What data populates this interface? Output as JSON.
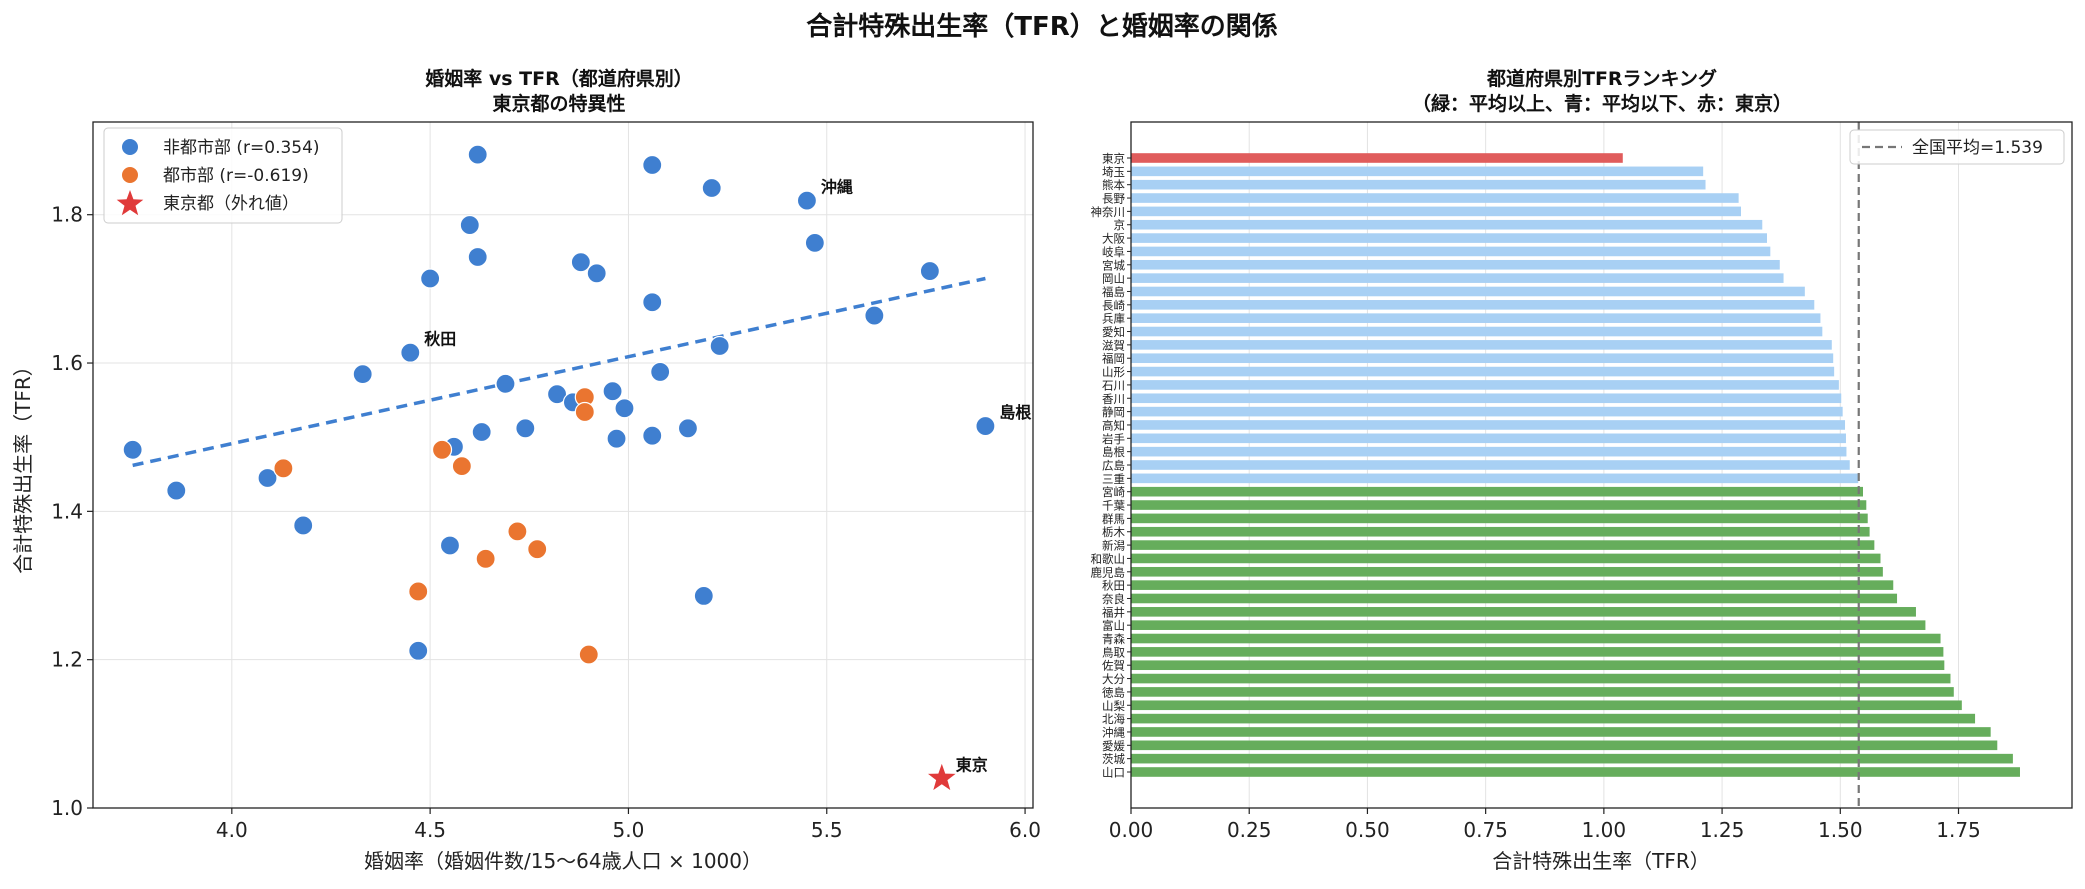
{
  "suptitle": "合計特殊出生率（TFR）と婚姻率の関係",
  "chart_data": [
    {
      "type": "scatter",
      "title": [
        "婚姻率 vs TFR（都道府県別）",
        "東京都の特異性"
      ],
      "xlabel": "婚姻率（婚姻件数/15〜64歳人口 × 1000）",
      "ylabel": "合計特殊出生率（TFR）",
      "xlim": [
        3.65,
        6.02
      ],
      "ylim": [
        1.0,
        1.925
      ],
      "xticks": [
        "4.0",
        "4.5",
        "5.0",
        "5.5",
        "6.0"
      ],
      "yticks": [
        "1.0",
        "1.2",
        "1.4",
        "1.6",
        "1.8"
      ],
      "grid": true,
      "legend_position": "upper-left",
      "colors": {
        "non_urban": "#3f7fd0",
        "urban": "#ea7530",
        "tokyo": "#e03a3a",
        "trend": "#3f7fd0"
      },
      "series": [
        {
          "name": "非都市部 (r=0.354)",
          "points": [
            [
              3.75,
              1.483
            ],
            [
              3.86,
              1.428
            ],
            [
              4.09,
              1.445
            ],
            [
              4.18,
              1.381
            ],
            [
              4.33,
              1.585
            ],
            [
              4.45,
              1.614
            ],
            [
              4.47,
              1.212
            ],
            [
              4.5,
              1.714
            ],
            [
              4.55,
              1.354
            ],
            [
              4.56,
              1.487
            ],
            [
              4.6,
              1.786
            ],
            [
              4.62,
              1.881
            ],
            [
              4.62,
              1.743
            ],
            [
              4.63,
              1.507
            ],
            [
              4.69,
              1.572
            ],
            [
              4.74,
              1.512
            ],
            [
              4.82,
              1.558
            ],
            [
              4.86,
              1.547
            ],
            [
              4.88,
              1.736
            ],
            [
              4.92,
              1.721
            ],
            [
              4.96,
              1.562
            ],
            [
              4.97,
              1.498
            ],
            [
              4.99,
              1.539
            ],
            [
              5.06,
              1.867
            ],
            [
              5.06,
              1.682
            ],
            [
              5.06,
              1.502
            ],
            [
              5.08,
              1.588
            ],
            [
              5.15,
              1.512
            ],
            [
              5.19,
              1.286
            ],
            [
              5.21,
              1.836
            ],
            [
              5.23,
              1.623
            ],
            [
              5.45,
              1.819
            ],
            [
              5.47,
              1.762
            ],
            [
              5.62,
              1.664
            ],
            [
              5.76,
              1.724
            ],
            [
              5.9,
              1.515
            ]
          ]
        },
        {
          "name": "都市部 (r=-0.619)",
          "points": [
            [
              4.13,
              1.458
            ],
            [
              4.47,
              1.292
            ],
            [
              4.53,
              1.483
            ],
            [
              4.58,
              1.461
            ],
            [
              4.64,
              1.336
            ],
            [
              4.72,
              1.373
            ],
            [
              4.77,
              1.349
            ],
            [
              4.89,
              1.554
            ],
            [
              4.89,
              1.534
            ],
            [
              4.9,
              1.207
            ]
          ]
        },
        {
          "name": "東京都（外れ値）",
          "points": [
            [
              5.79,
              1.04
            ]
          ]
        }
      ],
      "trendline": {
        "x": [
          3.75,
          5.9
        ],
        "y": [
          1.462,
          1.714
        ]
      },
      "annotations": [
        {
          "text": "沖縄",
          "x": 5.45,
          "y": 1.819
        },
        {
          "text": "秋田",
          "x": 4.45,
          "y": 1.614
        },
        {
          "text": "島根",
          "x": 5.9,
          "y": 1.515
        },
        {
          "text": "東京",
          "x": 5.79,
          "y": 1.04
        }
      ]
    },
    {
      "type": "bar",
      "orientation": "horizontal",
      "title": [
        "都道府県別TFRランキング",
        "（緑：平均以上、青：平均以下、赤：東京）"
      ],
      "xlabel": "合計特殊出生率（TFR）",
      "xlim": [
        0,
        1.99
      ],
      "xticks": [
        "0.00",
        "0.25",
        "0.50",
        "0.75",
        "1.00",
        "1.25",
        "1.50",
        "1.75"
      ],
      "reference_line": {
        "label": "全国平均=1.539",
        "value": 1.539
      },
      "legend_position": "upper-right",
      "colors": {
        "above": "#66ad5c",
        "below": "#a8d0f4",
        "tokyo": "#e05c5c",
        "reference": "#777777"
      },
      "categories": [
        "東京",
        "埼玉",
        "熊本",
        "長野",
        "神奈川",
        "京",
        "大阪",
        "岐阜",
        "宮城",
        "岡山",
        "福島",
        "長崎",
        "兵庫",
        "愛知",
        "滋賀",
        "福岡",
        "山形",
        "石川",
        "香川",
        "静岡",
        "高知",
        "岩手",
        "島根",
        "広島",
        "三重",
        "宮崎",
        "千葉",
        "群馬",
        "栃木",
        "新潟",
        "和歌山",
        "鹿児島",
        "秋田",
        "奈良",
        "福井",
        "富山",
        "青森",
        "鳥取",
        "佐賀",
        "大分",
        "徳島",
        "山梨",
        "北海",
        "沖縄",
        "愛媛",
        "茨城",
        "山口"
      ],
      "values": [
        1.04,
        1.21,
        1.215,
        1.285,
        1.29,
        1.335,
        1.345,
        1.352,
        1.372,
        1.38,
        1.425,
        1.445,
        1.458,
        1.462,
        1.482,
        1.485,
        1.487,
        1.497,
        1.502,
        1.505,
        1.51,
        1.512,
        1.513,
        1.52,
        1.538,
        1.548,
        1.555,
        1.558,
        1.562,
        1.572,
        1.585,
        1.59,
        1.612,
        1.62,
        1.66,
        1.68,
        1.712,
        1.718,
        1.72,
        1.733,
        1.74,
        1.757,
        1.785,
        1.818,
        1.832,
        1.865,
        1.88
      ]
    }
  ]
}
